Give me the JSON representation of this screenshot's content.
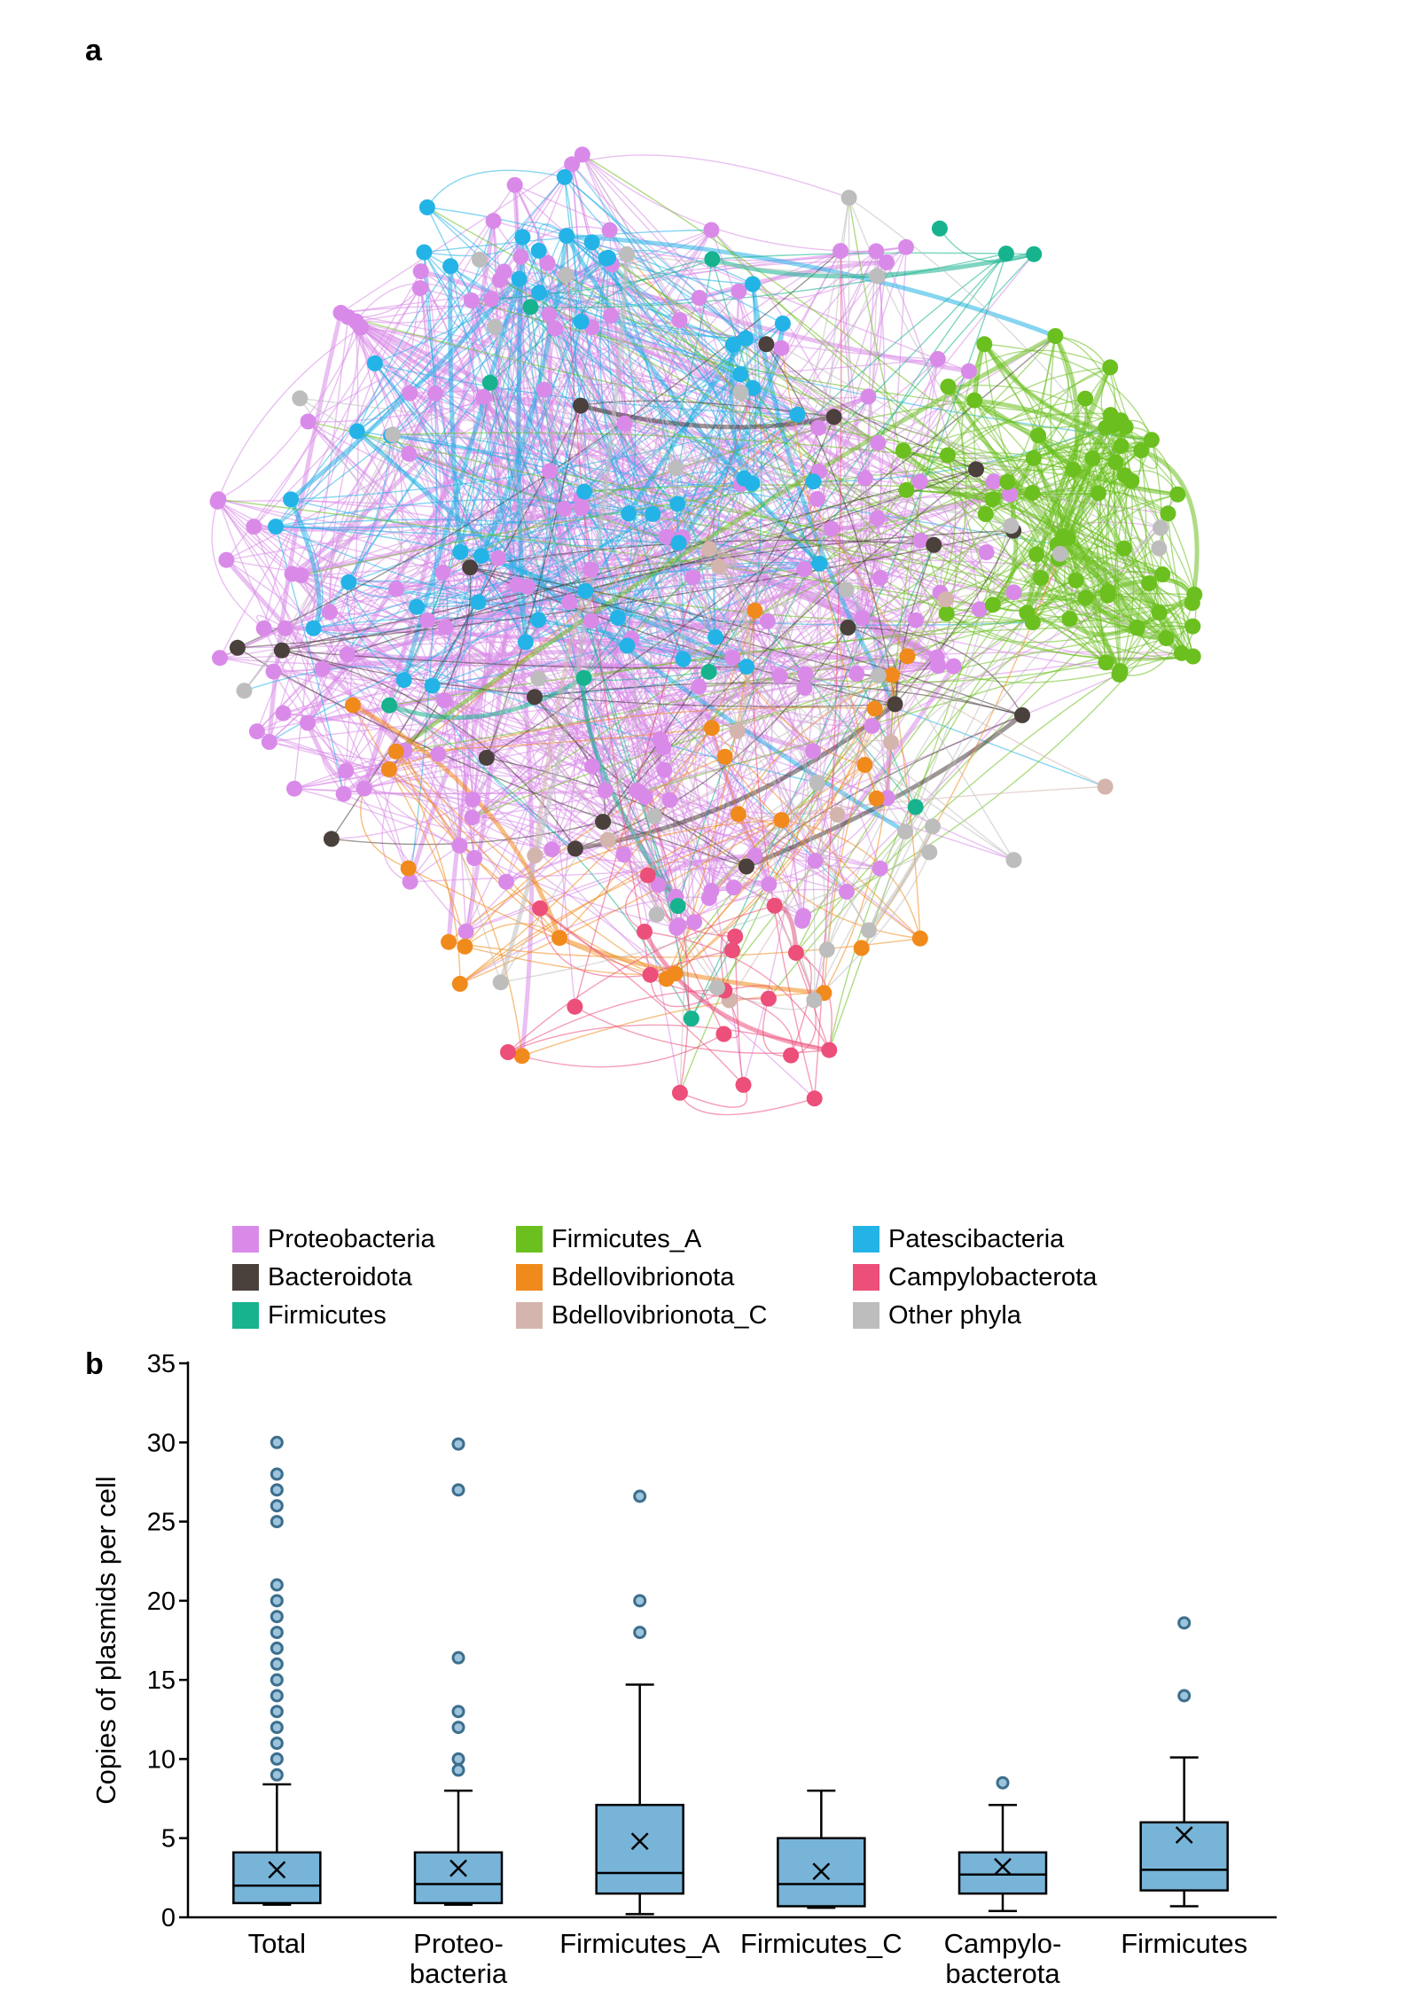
{
  "panel_a_label": "a",
  "panel_b_label": "b",
  "colors": {
    "Proteobacteria": "#d98ae8",
    "Bacteroidota": "#4a403c",
    "Firmicutes": "#16b38e",
    "Firmicutes_A": "#6bbf1f",
    "Bdellovibrionota": "#f08a1c",
    "Bdellovibrionota_C": "#d4b5ae",
    "Patescibacteria": "#24b3e6",
    "Campylobacterota": "#ec4f7a",
    "Other phyla": "#bdbdbd",
    "box_fill": "#77b4d8",
    "outlier": "#3d6e8c"
  },
  "legend": [
    {
      "label": "Proteobacteria",
      "key": "Proteobacteria"
    },
    {
      "label": "Bacteroidota",
      "key": "Bacteroidota"
    },
    {
      "label": "Firmicutes",
      "key": "Firmicutes"
    },
    {
      "label": "Firmicutes_A",
      "key": "Firmicutes_A"
    },
    {
      "label": "Bdellovibrionota",
      "key": "Bdellovibrionota"
    },
    {
      "label": "Bdellovibrionota_C",
      "key": "Bdellovibrionota_C"
    },
    {
      "label": "Patescibacteria",
      "key": "Patescibacteria"
    },
    {
      "label": "Campylobacterota",
      "key": "Campylobacterota"
    },
    {
      "label": "Other phyla",
      "key": "Other phyla"
    }
  ],
  "chart_data": [
    {
      "type": "network",
      "legend_placement": "bottom",
      "node_counts": {
        "Proteobacteria": 150,
        "Patescibacteria": 50,
        "Firmicutes_A": 60,
        "Bacteroidota": 18,
        "Firmicutes": 12,
        "Bdellovibrionota": 24,
        "Bdellovibrionota_C": 10,
        "Campylobacterota": 18,
        "Other phyla": 30
      }
    },
    {
      "type": "box",
      "ylabel": "Copies of plasmids per cell",
      "ylim": [
        0,
        35
      ],
      "yticks": [
        0,
        5,
        10,
        15,
        20,
        25,
        30,
        35
      ],
      "categories": [
        {
          "label": [
            "Total"
          ],
          "min": 0.8,
          "q1": 0.9,
          "median": 2.0,
          "q3": 4.1,
          "max": 8.4,
          "mean": 3.0,
          "outliers": [
            9.0,
            10.0,
            11.0,
            12.0,
            13.0,
            14.0,
            15.0,
            16.0,
            17.0,
            18.0,
            19.0,
            20.0,
            21.0,
            25.0,
            26.0,
            27.0,
            28.0,
            30.0
          ]
        },
        {
          "label": [
            "Proteo-",
            "bacteria"
          ],
          "min": 0.8,
          "q1": 0.9,
          "median": 2.1,
          "q3": 4.1,
          "max": 8.0,
          "mean": 3.1,
          "outliers": [
            9.3,
            10.0,
            12.0,
            13.0,
            16.4,
            27.0,
            29.9
          ]
        },
        {
          "label": [
            "Firmicutes_A"
          ],
          "min": 0.2,
          "q1": 1.5,
          "median": 2.8,
          "q3": 7.1,
          "max": 14.7,
          "mean": 4.8,
          "outliers": [
            18.0,
            20.0,
            26.6
          ]
        },
        {
          "label": [
            "Firmicutes_C"
          ],
          "min": 0.6,
          "q1": 0.7,
          "median": 2.1,
          "q3": 5.0,
          "max": 8.0,
          "mean": 2.9,
          "outliers": []
        },
        {
          "label": [
            "Campylo-",
            "bacterota"
          ],
          "min": 0.4,
          "q1": 1.5,
          "median": 2.7,
          "q3": 4.1,
          "max": 7.1,
          "mean": 3.2,
          "outliers": [
            8.5
          ]
        },
        {
          "label": [
            "Firmicutes"
          ],
          "min": 0.7,
          "q1": 1.7,
          "median": 3.0,
          "q3": 6.0,
          "max": 10.1,
          "mean": 5.2,
          "outliers": [
            14.0,
            18.6
          ]
        }
      ]
    }
  ]
}
